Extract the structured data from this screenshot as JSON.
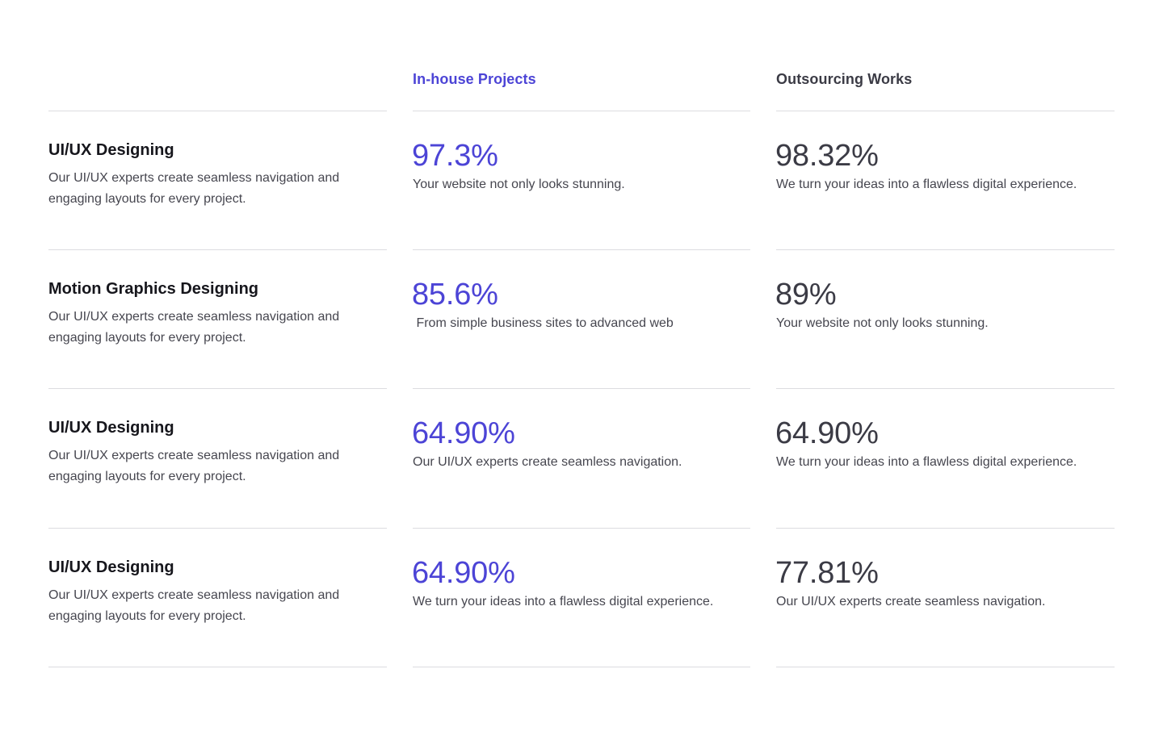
{
  "colors": {
    "accent": "#4c44d6",
    "heading_dark": "#3b3b45",
    "title": "#16161c",
    "body_text": "#46464f",
    "rule": "#dcdce0"
  },
  "columns": {
    "inhouse": "In-house Projects",
    "outsource": "Outsourcing Works"
  },
  "rows": [
    {
      "title": "UI/UX Designing",
      "description": "Our UI/UX experts create seamless navigation and engaging layouts for every project.",
      "inhouse_value": "97.3%",
      "inhouse_note": "Your website not only looks stunning.",
      "outsource_value": "98.32%",
      "outsource_note": "We turn your ideas into a flawless digital experience."
    },
    {
      "title": "Motion Graphics Designing",
      "description": "Our UI/UX experts create seamless navigation and engaging layouts for every project.",
      "inhouse_value": "85.6%",
      "inhouse_note": " From simple business sites to advanced web",
      "outsource_value": "89%",
      "outsource_note": "Your website not only looks stunning."
    },
    {
      "title": "UI/UX Designing",
      "description": "Our UI/UX experts create seamless navigation and engaging layouts for every project.",
      "inhouse_value": "64.90%",
      "inhouse_note": "Our UI/UX experts create seamless navigation.",
      "outsource_value": "64.90%",
      "outsource_note": "We turn your ideas into a flawless digital experience."
    },
    {
      "title": "UI/UX Designing",
      "description": "Our UI/UX experts create seamless navigation and engaging layouts for every project.",
      "inhouse_value": "64.90%",
      "inhouse_note": "We turn your ideas into a flawless digital experience.",
      "outsource_value": "77.81%",
      "outsource_note": "Our UI/UX experts create seamless navigation."
    }
  ]
}
